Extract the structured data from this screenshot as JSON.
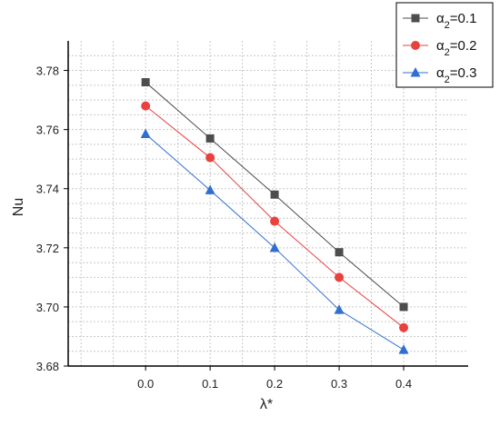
{
  "chart_data": {
    "type": "line",
    "title": "",
    "xlabel": "λ*",
    "ylabel": "Nu",
    "x": [
      0.0,
      0.1,
      0.2,
      0.3,
      0.4
    ],
    "x_tick_labels": [
      "0.0",
      "0.1",
      "0.2",
      "0.3",
      "0.4"
    ],
    "xlim": [
      -0.12,
      0.5
    ],
    "ylim": [
      3.68,
      3.79
    ],
    "y_ticks": [
      3.68,
      3.7,
      3.72,
      3.74,
      3.76,
      3.78
    ],
    "y_tick_labels": [
      "3.68",
      "3.70",
      "3.72",
      "3.74",
      "3.76",
      "3.78"
    ],
    "grid": true,
    "legend": "top-right",
    "series": [
      {
        "name": "α2=0.1",
        "name_base": "α",
        "name_sub": "2",
        "name_rest": "=0.1",
        "values": [
          3.776,
          3.757,
          3.738,
          3.7185,
          3.7
        ],
        "marker": "square",
        "color": "#4d4d4d"
      },
      {
        "name": "α2=0.2",
        "name_base": "α",
        "name_sub": "2",
        "name_rest": "=0.2",
        "values": [
          3.768,
          3.7505,
          3.729,
          3.71,
          3.693
        ],
        "marker": "circle",
        "color": "#e8413e"
      },
      {
        "name": "α2=0.3",
        "name_base": "α",
        "name_sub": "2",
        "name_rest": "=0.3",
        "values": [
          3.7585,
          3.7395,
          3.72,
          3.699,
          3.6855
        ],
        "marker": "triangle",
        "color": "#2f6fd0"
      }
    ]
  }
}
